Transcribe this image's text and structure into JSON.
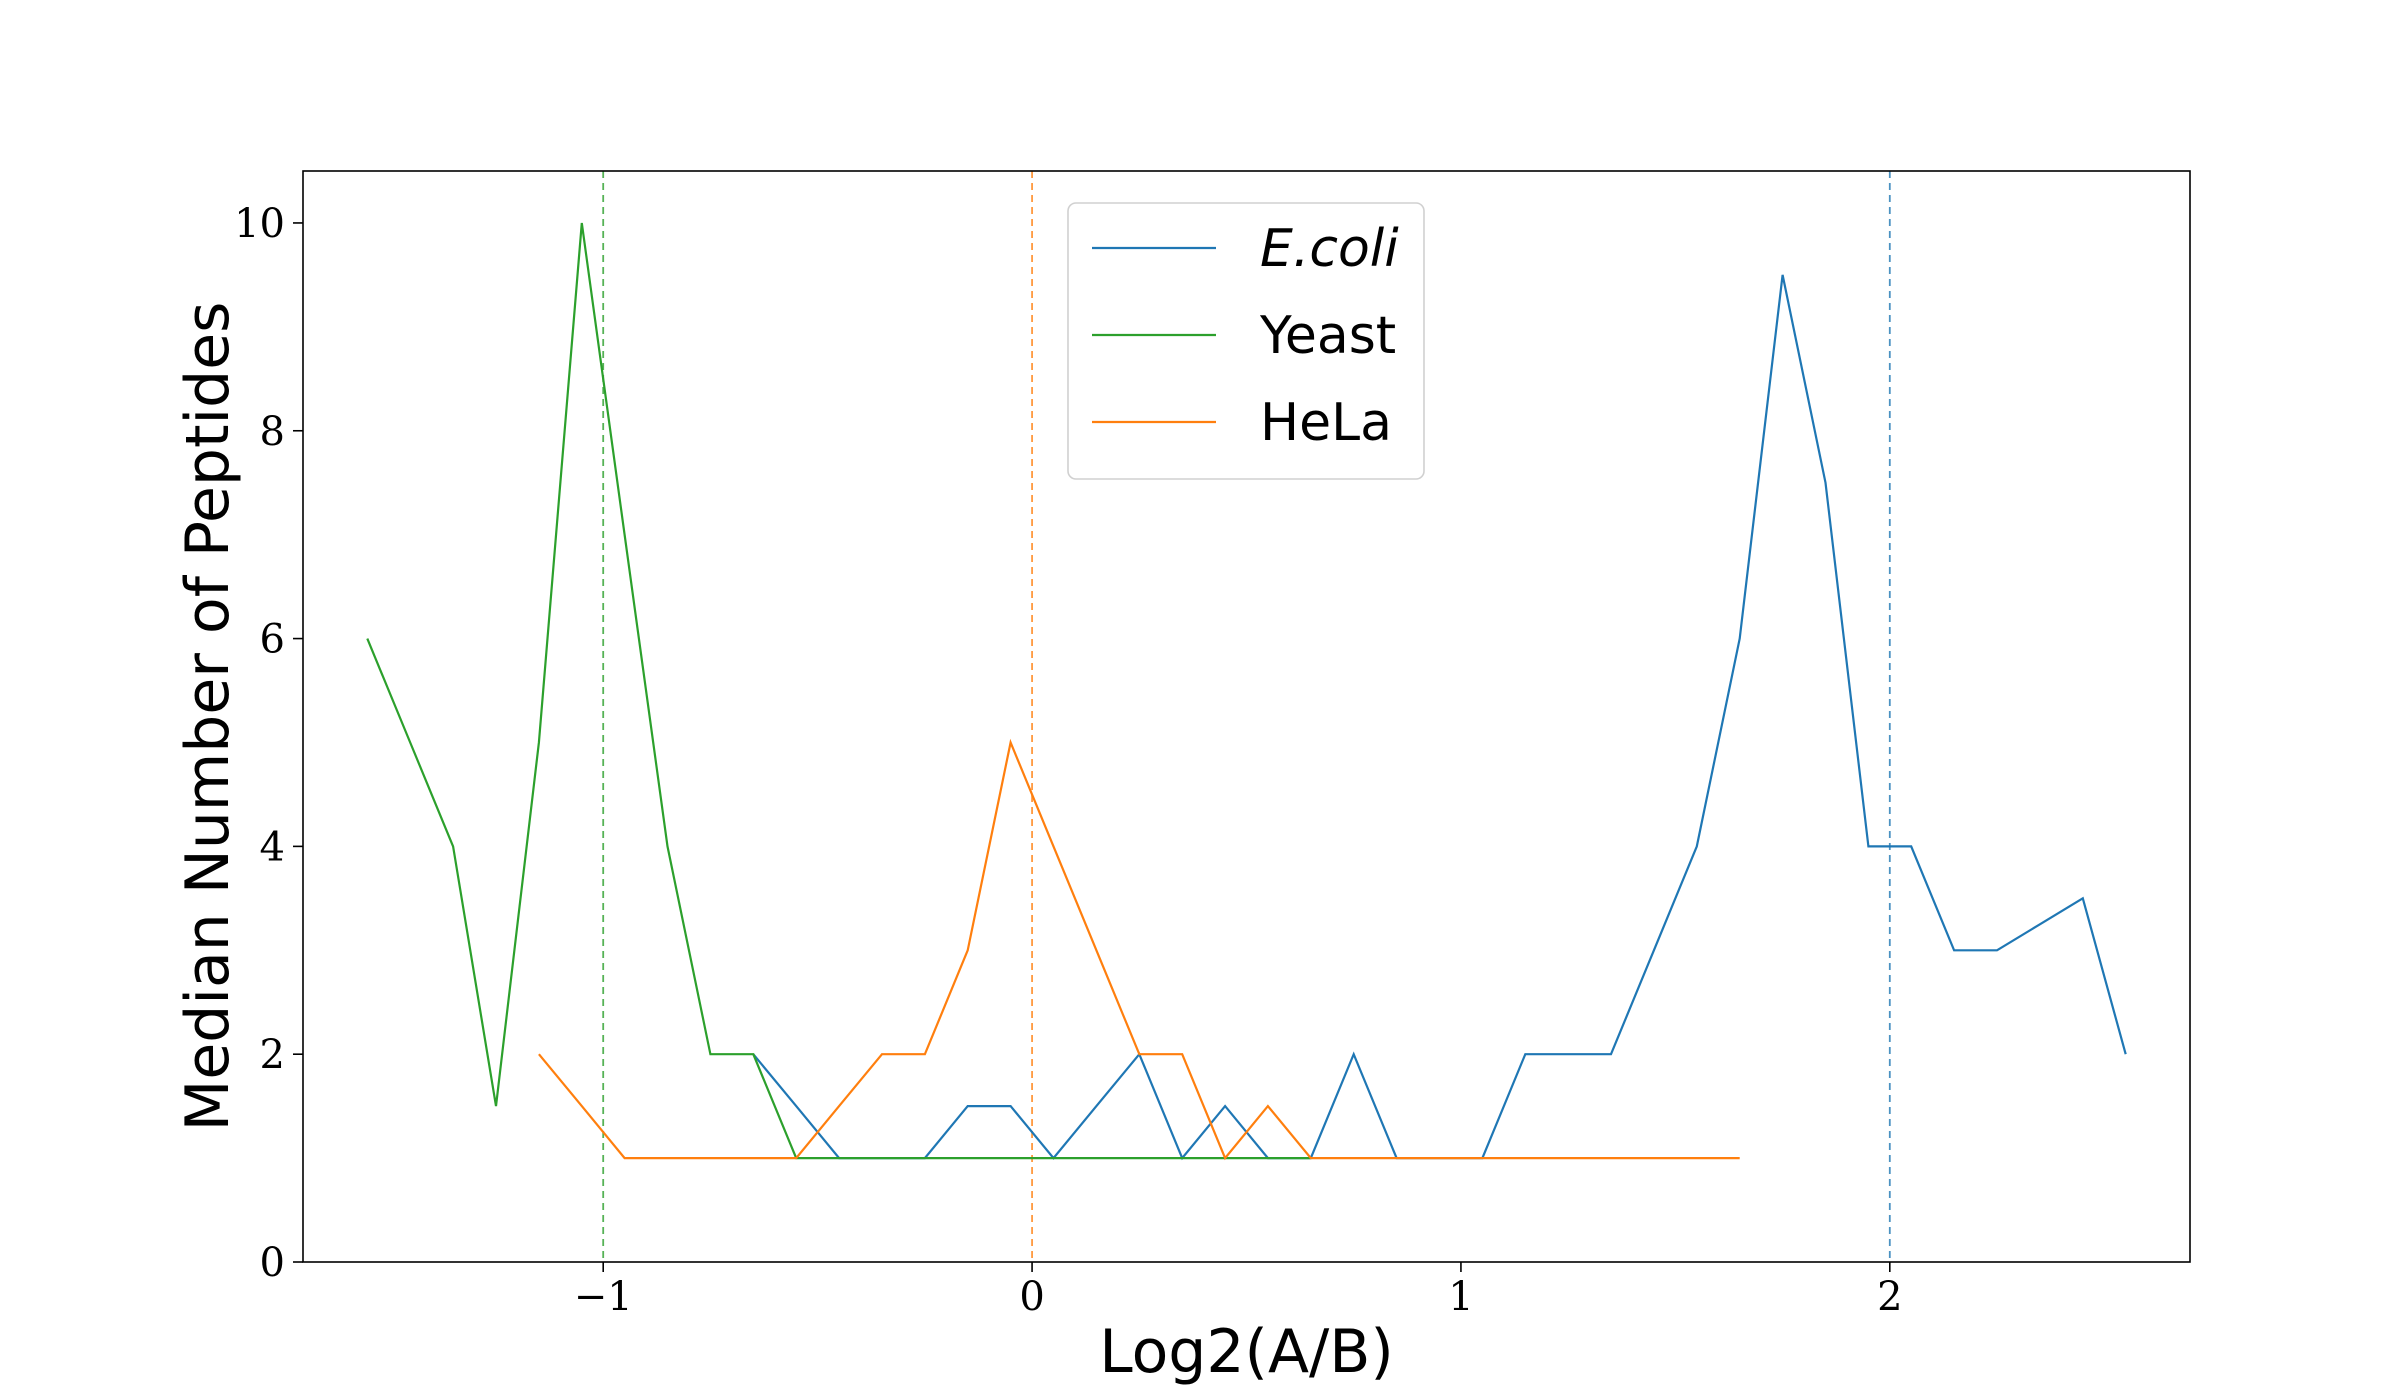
{
  "chart_data": {
    "type": "line",
    "xlabel": "Log2(A/B)",
    "ylabel": "Median Number of Peptides",
    "xlim": [
      -1.7,
      2.7
    ],
    "ylim": [
      0,
      10.5
    ],
    "xticks": [
      -1,
      0,
      1,
      2
    ],
    "xtick_labels": [
      "−1",
      "0",
      "1",
      "2"
    ],
    "yticks": [
      0,
      2,
      4,
      6,
      8,
      10
    ],
    "ytick_labels": [
      "0",
      "2",
      "4",
      "6",
      "8",
      "10"
    ],
    "grid": false,
    "legend_position": "top-center",
    "series": [
      {
        "name": "E.coli",
        "italic": true,
        "color": "#1f77b4",
        "x": [
          -0.65,
          -0.55,
          -0.45,
          -0.35,
          -0.25,
          -0.15,
          -0.05,
          0.05,
          0.15,
          0.25,
          0.35,
          0.45,
          0.55,
          0.65,
          0.75,
          0.85,
          0.95,
          1.05,
          1.15,
          1.25,
          1.35,
          1.45,
          1.55,
          1.65,
          1.75,
          1.85,
          1.95,
          2.05,
          2.15,
          2.25,
          2.35,
          2.45,
          2.55
        ],
        "y": [
          2,
          1.5,
          1,
          1,
          1,
          1.5,
          1.5,
          1,
          1.5,
          2,
          1,
          1.5,
          1,
          1,
          2,
          1,
          1,
          1,
          2,
          2,
          2,
          3,
          4,
          6,
          9.5,
          7.5,
          4,
          4,
          3,
          3,
          3.25,
          3.5,
          2
        ]
      },
      {
        "name": "Yeast",
        "italic": false,
        "color": "#2ca02c",
        "x": [
          -1.55,
          -1.45,
          -1.35,
          -1.25,
          -1.15,
          -1.05,
          -0.95,
          -0.85,
          -0.75,
          -0.65,
          -0.55,
          -0.45,
          -0.35,
          -0.25,
          -0.15,
          -0.05,
          0.05,
          0.15,
          0.25,
          0.35,
          0.45,
          0.55,
          0.65
        ],
        "y": [
          6,
          5,
          4,
          1.5,
          5,
          10,
          7,
          4,
          2,
          2,
          1,
          1,
          1,
          1,
          1,
          1,
          1,
          1,
          1,
          1,
          1,
          1,
          1
        ]
      },
      {
        "name": "HeLa",
        "italic": false,
        "color": "#ff7f0e",
        "x": [
          -1.15,
          -1.05,
          -0.95,
          -0.85,
          -0.75,
          -0.65,
          -0.55,
          -0.45,
          -0.35,
          -0.25,
          -0.15,
          -0.05,
          0.05,
          0.15,
          0.25,
          0.35,
          0.45,
          0.55,
          0.65,
          0.75,
          0.85,
          0.95,
          1.05,
          1.15,
          1.25,
          1.35,
          1.45,
          1.55,
          1.65
        ],
        "y": [
          2,
          1.5,
          1,
          1,
          1,
          1,
          1,
          1.5,
          2,
          2,
          3,
          5,
          4,
          3,
          2,
          2,
          1,
          1.5,
          1,
          1,
          1,
          1,
          1,
          1,
          1,
          1,
          1,
          1,
          1
        ]
      }
    ],
    "reference_lines": [
      {
        "x": -1,
        "color": "#2ca02c",
        "style": "dashed"
      },
      {
        "x": 0,
        "color": "#ff7f0e",
        "style": "dashed"
      },
      {
        "x": 2,
        "color": "#1f77b4",
        "style": "dashed"
      }
    ]
  }
}
